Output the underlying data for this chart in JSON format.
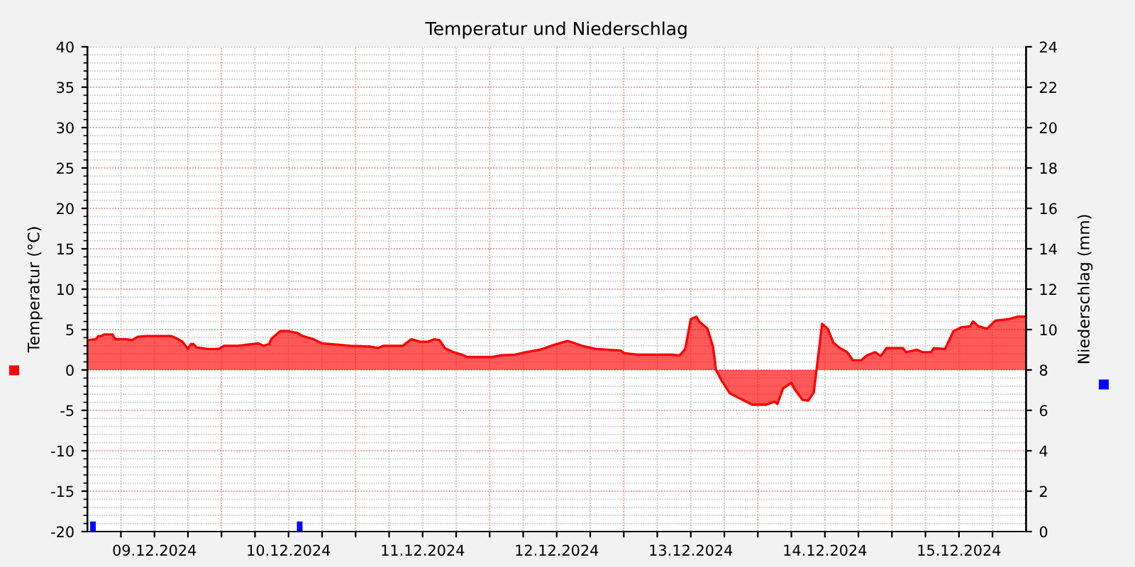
{
  "chart_data": {
    "type": "area",
    "title": "Temperatur und Niederschlag",
    "ylabel": "Temperatur (°C)",
    "y2label": "Niederschlag (mm)",
    "xlim": [
      "2024-12-09T00:00",
      "2024-12-16T00:00"
    ],
    "xticks": [
      {
        "value": "2024-12-09T06:00",
        "label": null
      },
      {
        "value": "2024-12-09T12:00",
        "label": "09.12.2024"
      },
      {
        "value": "2024-12-09T18:00",
        "label": null
      },
      {
        "value": "2024-12-10T00:00",
        "label": null
      },
      {
        "value": "2024-12-10T06:00",
        "label": null
      },
      {
        "value": "2024-12-10T12:00",
        "label": "10.12.2024"
      },
      {
        "value": "2024-12-10T18:00",
        "label": null
      },
      {
        "value": "2024-12-11T00:00",
        "label": null
      },
      {
        "value": "2024-12-11T06:00",
        "label": null
      },
      {
        "value": "2024-12-11T12:00",
        "label": "11.12.2024"
      },
      {
        "value": "2024-12-11T18:00",
        "label": null
      },
      {
        "value": "2024-12-12T00:00",
        "label": null
      },
      {
        "value": "2024-12-12T06:00",
        "label": null
      },
      {
        "value": "2024-12-12T12:00",
        "label": "12.12.2024"
      },
      {
        "value": "2024-12-12T18:00",
        "label": null
      },
      {
        "value": "2024-12-13T00:00",
        "label": null
      },
      {
        "value": "2024-12-13T06:00",
        "label": null
      },
      {
        "value": "2024-12-13T12:00",
        "label": "13.12.2024"
      },
      {
        "value": "2024-12-13T18:00",
        "label": null
      },
      {
        "value": "2024-12-14T00:00",
        "label": null
      },
      {
        "value": "2024-12-14T06:00",
        "label": null
      },
      {
        "value": "2024-12-14T12:00",
        "label": "14.12.2024"
      },
      {
        "value": "2024-12-14T18:00",
        "label": null
      },
      {
        "value": "2024-12-15T00:00",
        "label": null
      },
      {
        "value": "2024-12-15T06:00",
        "label": null
      },
      {
        "value": "2024-12-15T12:00",
        "label": "15.12.2024"
      },
      {
        "value": "2024-12-15T18:00",
        "label": null
      }
    ],
    "ylim": [
      -20,
      40
    ],
    "yticks": [
      -20,
      -15,
      -10,
      -5,
      0,
      5,
      10,
      15,
      20,
      25,
      30,
      35,
      40
    ],
    "y2lim": [
      0,
      24
    ],
    "y2ticks": [
      0,
      2,
      4,
      6,
      8,
      10,
      12,
      14,
      16,
      18,
      20,
      22,
      24
    ],
    "grid": true,
    "series": [
      {
        "color": "#ff0000",
        "x": [
          "2024-12-09T00:00",
          "2024-12-09T01:30",
          "2024-12-09T02:00",
          "2024-12-09T02:30",
          "2024-12-09T03:00",
          "2024-12-09T04:30",
          "2024-12-09T05:00",
          "2024-12-09T07:00",
          "2024-12-09T08:00",
          "2024-12-09T09:00",
          "2024-12-09T10:30",
          "2024-12-09T15:00",
          "2024-12-09T16:00",
          "2024-12-09T17:00",
          "2024-12-09T18:00",
          "2024-12-09T18:30",
          "2024-12-09T19:00",
          "2024-12-09T19:30",
          "2024-12-09T21:30",
          "2024-12-09T23:30",
          "2024-12-10T00:30",
          "2024-12-10T03:00",
          "2024-12-10T05:30",
          "2024-12-10T06:30",
          "2024-12-10T07:30",
          "2024-12-10T08:30",
          "2024-12-10T09:00",
          "2024-12-10T10:30",
          "2024-12-10T12:00",
          "2024-12-10T13:30",
          "2024-12-10T14:30",
          "2024-12-10T16:30",
          "2024-12-10T18:00",
          "2024-12-10T19:30",
          "2024-12-10T23:00",
          "2024-12-11T02:30",
          "2024-12-11T04:00",
          "2024-12-11T05:00",
          "2024-12-11T08:30",
          "2024-12-11T09:00",
          "2024-12-11T10:00",
          "2024-12-11T11:30",
          "2024-12-11T13:00",
          "2024-12-11T14:00",
          "2024-12-11T15:00",
          "2024-12-11T16:00",
          "2024-12-11T17:30",
          "2024-12-11T19:00",
          "2024-12-11T20:00",
          "2024-12-12T00:30",
          "2024-12-12T02:00",
          "2024-12-12T04:30",
          "2024-12-12T06:30",
          "2024-12-12T09:00",
          "2024-12-12T11:30",
          "2024-12-12T14:00",
          "2024-12-12T16:30",
          "2024-12-12T19:00",
          "2024-12-12T23:30",
          "2024-12-13T00:00",
          "2024-12-13T02:30",
          "2024-12-13T08:30",
          "2024-12-13T10:00",
          "2024-12-13T11:00",
          "2024-12-13T12:00",
          "2024-12-13T13:00",
          "2024-12-13T13:30",
          "2024-12-13T15:00",
          "2024-12-13T16:00",
          "2024-12-13T16:30",
          "2024-12-13T17:30",
          "2024-12-13T19:00",
          "2024-12-13T21:00",
          "2024-12-13T23:00",
          "2024-12-14T01:30",
          "2024-12-14T03:00",
          "2024-12-14T03:30",
          "2024-12-14T04:30",
          "2024-12-14T06:00",
          "2024-12-14T06:30",
          "2024-12-14T08:00",
          "2024-12-14T09:00",
          "2024-12-14T10:00",
          "2024-12-14T10:30",
          "2024-12-14T11:30",
          "2024-12-14T12:30",
          "2024-12-14T13:30",
          "2024-12-14T14:30",
          "2024-12-14T16:00",
          "2024-12-14T17:00",
          "2024-12-14T18:30",
          "2024-12-14T19:30",
          "2024-12-14T21:00",
          "2024-12-14T22:00",
          "2024-12-14T23:00",
          "2024-12-15T02:00",
          "2024-12-15T02:30",
          "2024-12-15T04:30",
          "2024-12-15T05:30",
          "2024-12-15T07:00",
          "2024-12-15T07:30",
          "2024-12-15T09:30",
          "2024-12-15T11:00",
          "2024-12-15T12:30",
          "2024-12-15T14:00",
          "2024-12-15T14:30",
          "2024-12-15T15:30",
          "2024-12-15T17:00",
          "2024-12-15T18:30",
          "2024-12-15T21:00",
          "2024-12-15T22:30",
          "2024-12-16T00:00"
        ],
        "values": [
          3.7,
          3.8,
          4.2,
          4.2,
          4.4,
          4.4,
          3.8,
          3.8,
          3.7,
          4.1,
          4.2,
          4.2,
          3.9,
          3.5,
          2.6,
          3.2,
          3.2,
          2.8,
          2.6,
          2.6,
          3.0,
          3.0,
          3.2,
          3.3,
          3.0,
          3.2,
          3.9,
          4.8,
          4.8,
          4.6,
          4.2,
          3.8,
          3.3,
          3.2,
          3.0,
          2.9,
          2.7,
          3.0,
          3.0,
          3.3,
          3.8,
          3.5,
          3.5,
          3.8,
          3.7,
          2.7,
          2.2,
          1.9,
          1.6,
          1.6,
          1.8,
          1.9,
          2.2,
          2.5,
          3.1,
          3.6,
          3.0,
          2.6,
          2.4,
          2.1,
          1.9,
          1.9,
          1.8,
          2.6,
          6.3,
          6.6,
          6.0,
          5.1,
          2.8,
          0,
          -1.3,
          -2.9,
          -3.6,
          -4.3,
          -4.3,
          -3.9,
          -4.2,
          -2.3,
          -1.6,
          -2.3,
          -3.7,
          -3.8,
          -2.8,
          0,
          5.7,
          5.1,
          3.4,
          2.8,
          2.2,
          1.2,
          1.2,
          1.8,
          2.2,
          1.7,
          2.7,
          2.7,
          2.2,
          2.5,
          2.2,
          2.2,
          2.7,
          2.6,
          4.8,
          5.3,
          5.4,
          6.0,
          5.4,
          5.1,
          6.1,
          6.3,
          6.6,
          6.6
        ]
      },
      {
        "type": "bar",
        "axis": "y2",
        "color": "#0000ff",
        "x": [
          "2024-12-09T01:00",
          "2024-12-10T14:00"
        ],
        "values": [
          0.5,
          0.5
        ]
      }
    ]
  }
}
